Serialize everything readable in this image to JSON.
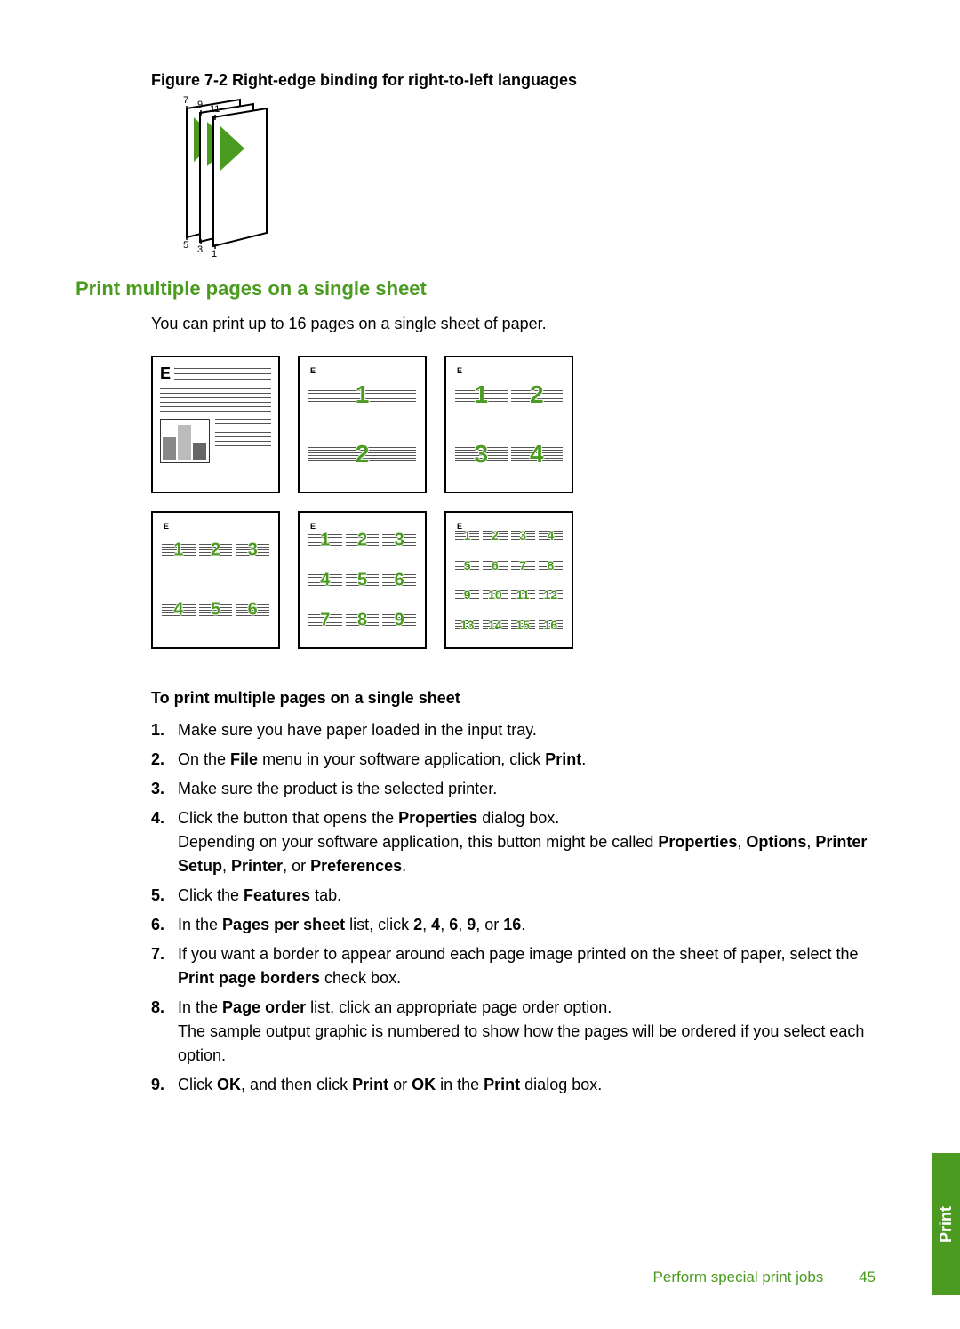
{
  "figure": {
    "caption": "Figure 7-2 Right-edge binding for right-to-left languages",
    "top_labels": [
      "7",
      "9",
      "11"
    ],
    "bottom_labels": [
      "5",
      "3",
      "1"
    ],
    "accent_color": "#4a9b1f",
    "page_fill": "#ffffff",
    "stroke": "#000000"
  },
  "section_heading": "Print multiple pages on a single sheet",
  "intro": "You can print up to 16 pages on a single sheet of paper.",
  "layouts": {
    "one_up": {
      "rows": 1,
      "cols": 1,
      "pages": []
    },
    "two_up": {
      "rows": 2,
      "cols": 1,
      "pages": [
        "1",
        "2"
      ]
    },
    "four_up": {
      "rows": 2,
      "cols": 2,
      "pages": [
        "1",
        "2",
        "3",
        "4"
      ]
    },
    "six_up": {
      "rows": 2,
      "cols": 3,
      "pages": [
        "1",
        "2",
        "3",
        "4",
        "5",
        "6"
      ]
    },
    "nine_up": {
      "rows": 3,
      "cols": 3,
      "pages": [
        "1",
        "2",
        "3",
        "4",
        "5",
        "6",
        "7",
        "8",
        "9"
      ]
    },
    "sixteen_up": {
      "rows": 4,
      "cols": 4,
      "pages": [
        "1",
        "2",
        "3",
        "4",
        "5",
        "6",
        "7",
        "8",
        "9",
        "10",
        "11",
        "12",
        "13",
        "14",
        "15",
        "16"
      ]
    }
  },
  "subheading": "To print multiple pages on a single sheet",
  "steps": [
    {
      "n": "1.",
      "html": "Make sure you have paper loaded in the input tray."
    },
    {
      "n": "2.",
      "html": "On the <b>File</b> menu in your software application, click <b>Print</b>."
    },
    {
      "n": "3.",
      "html": "Make sure the product is the selected printer."
    },
    {
      "n": "4.",
      "html": "Click the button that opens the <b>Properties</b> dialog box.<br>Depending on your software application, this button might be called <b>Properties</b>, <b>Options</b>, <b>Printer Setup</b>, <b>Printer</b>, or <b>Preferences</b>."
    },
    {
      "n": "5.",
      "html": "Click the <b>Features</b> tab."
    },
    {
      "n": "6.",
      "html": "In the <b>Pages per sheet</b> list, click <b>2</b>, <b>4</b>, <b>6</b>, <b>9</b>, or <b>16</b>."
    },
    {
      "n": "7.",
      "html": "If you want a border to appear around each page image printed on the sheet of paper, select the <b>Print page borders</b> check box."
    },
    {
      "n": "8.",
      "html": "In the <b>Page order</b> list, click an appropriate page order option.<br>The sample output graphic is numbered to show how the pages will be ordered if you select each option."
    },
    {
      "n": "9.",
      "html": "Click <b>OK</b>, and then click <b>Print</b> or <b>OK</b> in the <b>Print</b> dialog box."
    }
  ],
  "footer": {
    "section": "Perform special print jobs",
    "page": "45"
  },
  "side_tab": "Print",
  "colors": {
    "accent": "#4a9b1f",
    "text": "#000000",
    "bg": "#ffffff",
    "line": "#555555"
  },
  "typography": {
    "body_fontsize_pt": 13,
    "heading_fontsize_pt": 16,
    "font_family": "Arial"
  }
}
